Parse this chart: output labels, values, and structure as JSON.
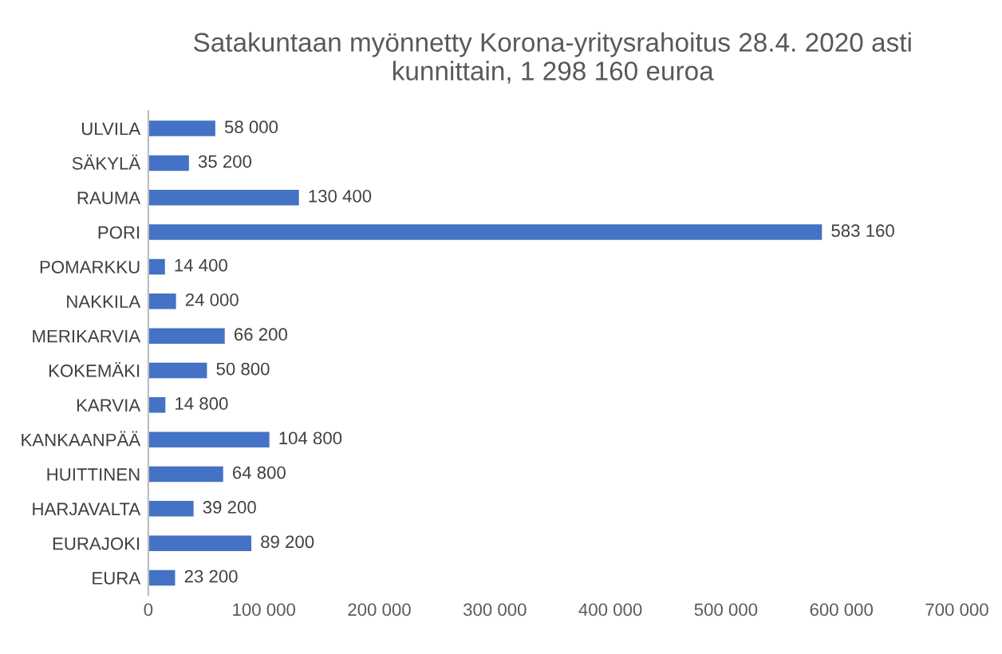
{
  "chart_data": {
    "type": "bar",
    "orientation": "horizontal",
    "title": "Satakuntaan myönnetty Korona-yritysrahoitus 28.4. 2020 asti\nkunnittain, 1 298 160 euroa",
    "categories": [
      "ULVILA",
      "SÄKYLÄ",
      "RAUMA",
      "PORI",
      "POMARKKU",
      "NAKKILA",
      "MERIKARVIA",
      "KOKEMÄKI",
      "KARVIA",
      "KANKAANPÄÄ",
      "HUITTINEN",
      "HARJAVALTA",
      "EURAJOKI",
      "EURA"
    ],
    "values": [
      58000,
      35200,
      130400,
      583160,
      14400,
      24000,
      66200,
      50800,
      14800,
      104800,
      64800,
      39200,
      89200,
      23200
    ],
    "value_labels": [
      "58 000",
      "35 200",
      "130 400",
      "583 160",
      "14 400",
      "24 000",
      "66 200",
      "50 800",
      "14 800",
      "104 800",
      "64 800",
      "39 200",
      "89 200",
      "23 200"
    ],
    "color": "#4472c4",
    "xlim": [
      0,
      700000
    ],
    "xticks": [
      0,
      {
        "value": 100000,
        "label": "100 000"
      },
      {
        "value": 200000,
        "label": "200 000"
      },
      {
        "value": 300000,
        "label": "300 000"
      },
      {
        "value": 400000,
        "label": "400 000"
      },
      {
        "value": 500000,
        "label": "500 000"
      },
      {
        "value": 600000,
        "label": "600 000"
      },
      {
        "value": 700000,
        "label": "700 000"
      }
    ],
    "grid": false,
    "legend": false
  }
}
